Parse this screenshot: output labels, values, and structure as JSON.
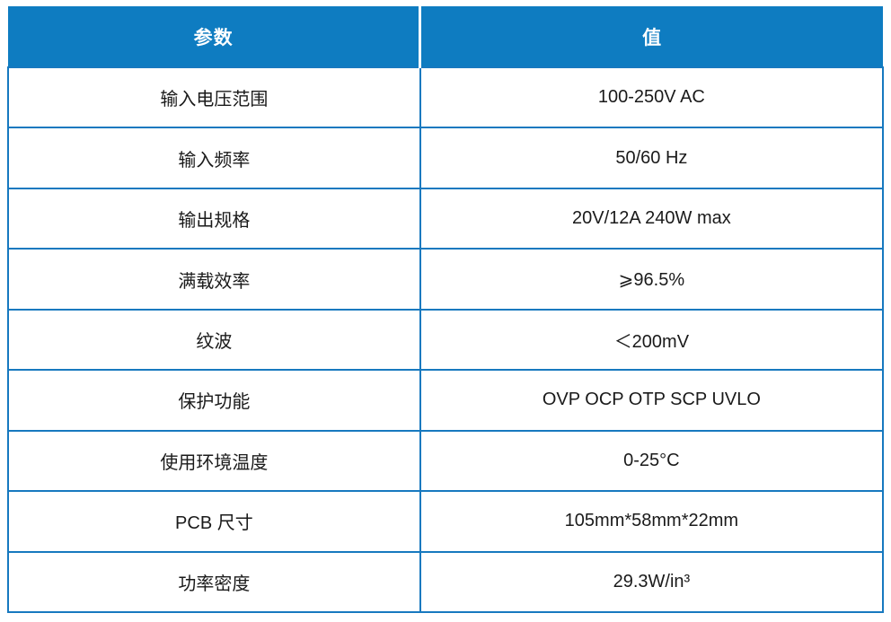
{
  "table": {
    "columns": [
      "参数",
      "值"
    ],
    "rows": [
      {
        "param": "输入电压范围",
        "value": "100-250V AC"
      },
      {
        "param": "输入频率",
        "value": "50/60 Hz"
      },
      {
        "param": "输出规格",
        "value": "20V/12A 240W max"
      },
      {
        "param": "满载效率",
        "value": "⩾96.5%"
      },
      {
        "param": "纹波",
        "value": "＜200mV"
      },
      {
        "param": "保护功能",
        "value": "OVP OCP OTP SCP UVLO"
      },
      {
        "param": "使用环境温度",
        "value": "0-25°C"
      },
      {
        "param": "PCB 尺寸",
        "value": "105mm*58mm*22mm"
      },
      {
        "param": "功率密度",
        "value": "29.3W/in³"
      }
    ],
    "colors": {
      "header_bg": "#0e7cc1",
      "header_text": "#ffffff",
      "border": "#1779bf",
      "cell_text": "#1a1a1a",
      "page_bg": "#ffffff"
    }
  }
}
